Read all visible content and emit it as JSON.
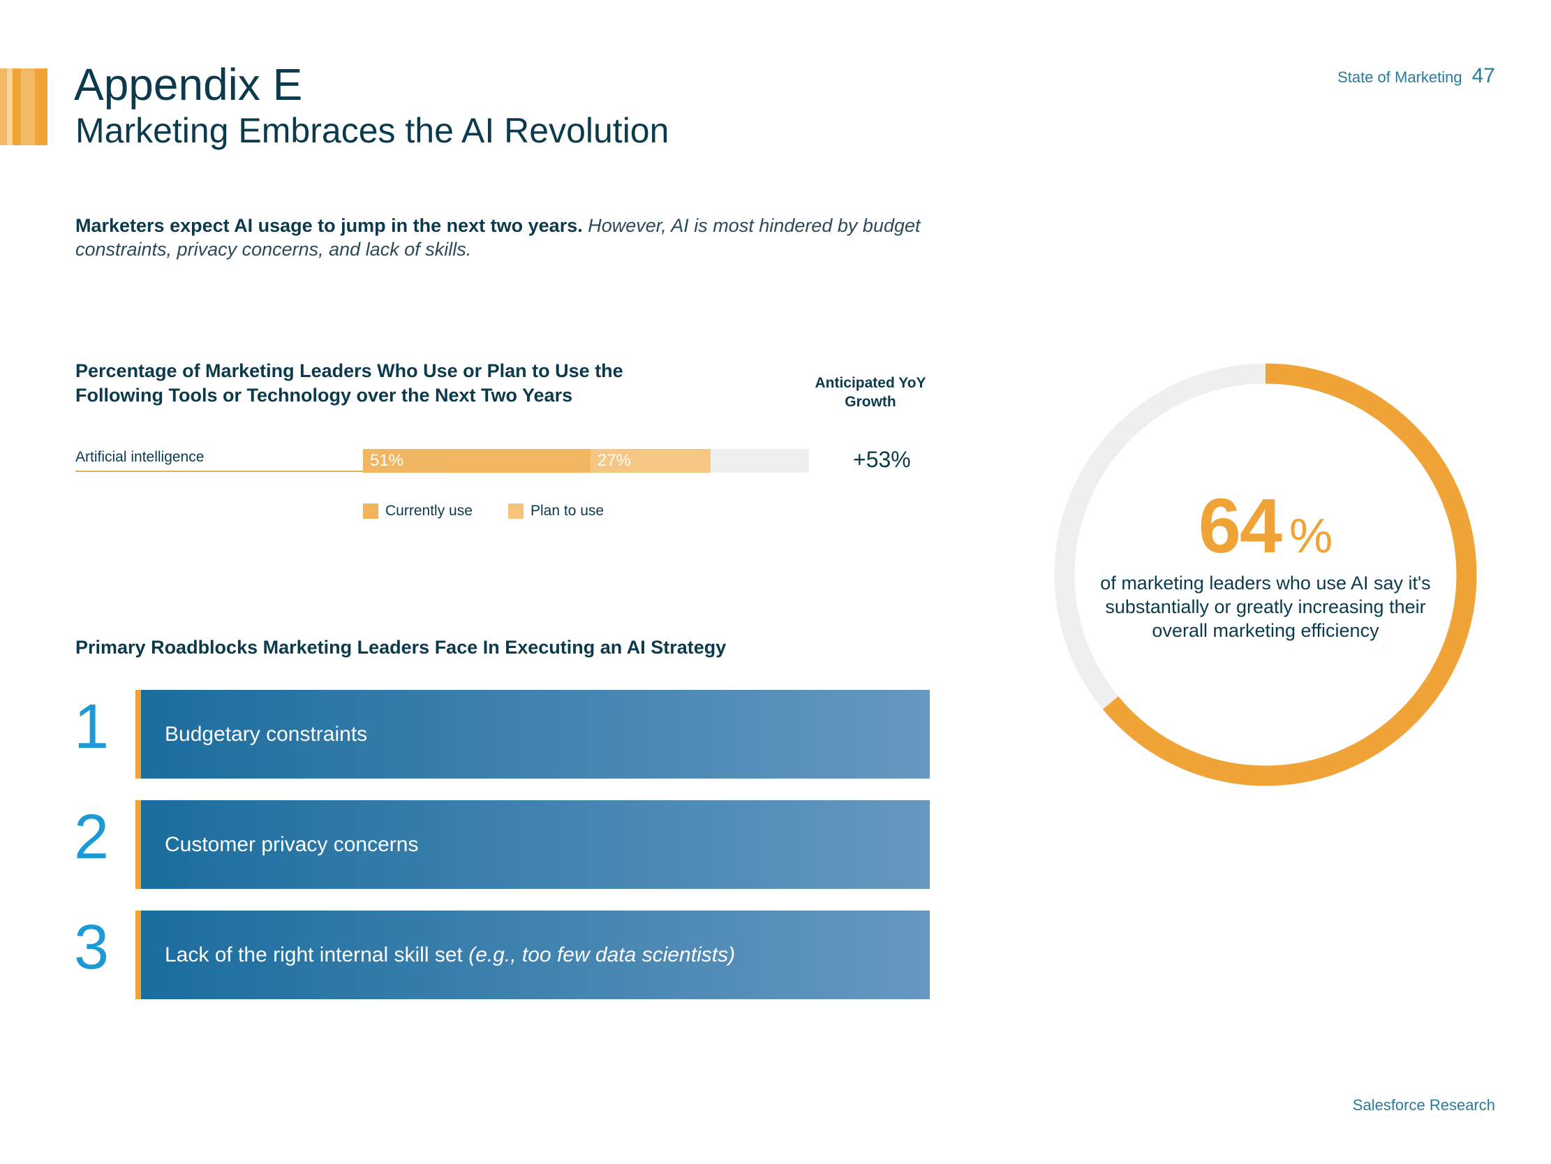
{
  "header": {
    "publication": "State of Marketing",
    "page_number": "47"
  },
  "title": "Appendix E",
  "subtitle": "Marketing Embraces the AI Revolution",
  "intro": {
    "bold": "Marketers expect AI usage to jump in the next two years.",
    "italic": "However, AI is most hindered by budget constraints, privacy concerns, and lack of skills."
  },
  "colors": {
    "orange": "#f0a336",
    "light_orange": "#f7c47e",
    "current": "#f2b35a",
    "track": "#efefef",
    "navy": "#0b3a4c",
    "blue": "#1c9ad6"
  },
  "chart_data": [
    {
      "type": "bar",
      "orientation": "horizontal-stacked",
      "title": "Percentage of Marketing Leaders Who Use or Plan to Use the Following Tools or Technology over the Next Two Years",
      "categories": [
        "Artificial intelligence"
      ],
      "xlim": [
        0,
        100
      ],
      "series": [
        {
          "name": "Currently use",
          "values": [
            51
          ],
          "labels": [
            "51%"
          ],
          "color": "#f2b35a"
        },
        {
          "name": "Plan to use",
          "values": [
            27
          ],
          "labels": [
            "27%"
          ],
          "color": "#f7c47e"
        }
      ],
      "extra_column": {
        "header": "Anticipated YoY Growth",
        "values": [
          "+53%"
        ]
      },
      "legend": "bottom"
    },
    {
      "type": "pie",
      "style": "donut",
      "values": [
        64,
        36
      ],
      "colors": [
        "#f0a336",
        "#efefef"
      ],
      "center_value": "64",
      "center_unit": "%",
      "caption": "of marketing leaders who use AI say it's substantially or greatly increasing their overall marketing efficiency"
    }
  ],
  "roadblocks": {
    "title": "Primary Roadblocks Marketing Leaders Face In Executing an AI Strategy",
    "items": [
      {
        "rank": "1",
        "text": "Budgetary constraints",
        "note": ""
      },
      {
        "rank": "2",
        "text": "Customer privacy concerns",
        "note": ""
      },
      {
        "rank": "3",
        "text": "Lack of the right internal skill set",
        "note": "(e.g., too few data scientists)"
      }
    ]
  },
  "footer": "Salesforce Research"
}
